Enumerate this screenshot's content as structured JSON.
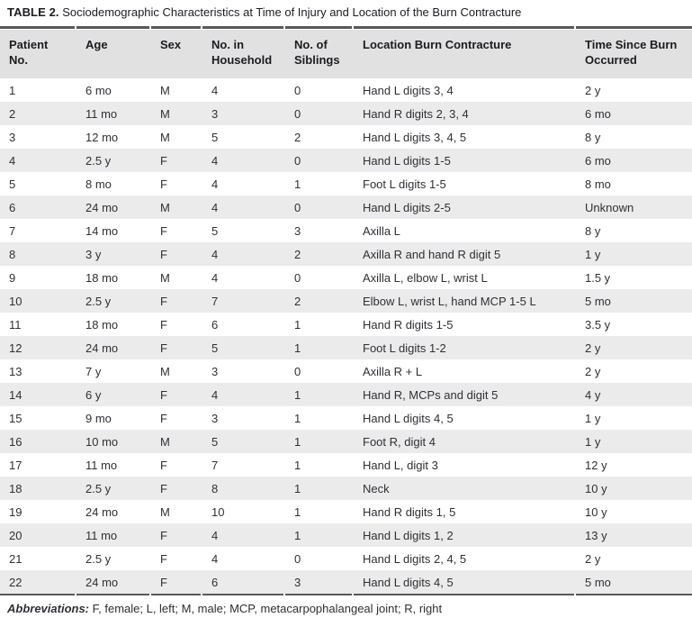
{
  "table": {
    "title_label": "TABLE 2.",
    "title_text": " Sociodemographic Characteristics at Time of Injury and Location of the Burn Contracture",
    "columns": [
      "Patient No.",
      "Age",
      "Sex",
      "No. in Household",
      "No. of Siblings",
      "Location Burn Contracture",
      "Time Since Burn Occurred"
    ],
    "rows": [
      [
        "1",
        "6 mo",
        "M",
        "4",
        "0",
        "Hand L digits 3, 4",
        "2 y"
      ],
      [
        "2",
        "11 mo",
        "M",
        "3",
        "0",
        "Hand R digits 2, 3, 4",
        "6 mo"
      ],
      [
        "3",
        "12 mo",
        "M",
        "5",
        "2",
        "Hand L digits 3, 4, 5",
        "8 y"
      ],
      [
        "4",
        "2.5 y",
        "F",
        "4",
        "0",
        "Hand L digits 1-5",
        "6 mo"
      ],
      [
        "5",
        "8 mo",
        "F",
        "4",
        "1",
        "Foot L digits 1-5",
        "8 mo"
      ],
      [
        "6",
        "24 mo",
        "M",
        "4",
        "0",
        "Hand L digits 2-5",
        "Unknown"
      ],
      [
        "7",
        "14 mo",
        "F",
        "5",
        "3",
        "Axilla L",
        "8 y"
      ],
      [
        "8",
        "3 y",
        "F",
        "4",
        "2",
        "Axilla R and hand R digit 5",
        "1 y"
      ],
      [
        "9",
        "18 mo",
        "M",
        "4",
        "0",
        "Axilla L, elbow L, wrist L",
        "1.5 y"
      ],
      [
        "10",
        "2.5 y",
        "F",
        "7",
        "2",
        "Elbow L, wrist L, hand MCP 1-5 L",
        "5 mo"
      ],
      [
        "11",
        "18 mo",
        "F",
        "6",
        "1",
        "Hand R digits 1-5",
        "3.5 y"
      ],
      [
        "12",
        "24 mo",
        "F",
        "5",
        "1",
        "Foot L digits 1-2",
        "2 y"
      ],
      [
        "13",
        "7 y",
        "M",
        "3",
        "0",
        "Axilla R + L",
        "2 y"
      ],
      [
        "14",
        "6 y",
        "F",
        "4",
        "1",
        "Hand R, MCPs and digit 5",
        "4 y"
      ],
      [
        "15",
        "9 mo",
        "F",
        "3",
        "1",
        "Hand L digits 4, 5",
        "1 y"
      ],
      [
        "16",
        "10 mo",
        "M",
        "5",
        "1",
        "Foot R, digit 4",
        "1 y"
      ],
      [
        "17",
        "11 mo",
        "F",
        "7",
        "1",
        "Hand L, digit 3",
        "12 y"
      ],
      [
        "18",
        "2.5 y",
        "F",
        "8",
        "1",
        "Neck",
        "10 y"
      ],
      [
        "19",
        "24 mo",
        "M",
        "10",
        "1",
        "Hand R digits 1, 5",
        "10 y"
      ],
      [
        "20",
        "11 mo",
        "F",
        "4",
        "1",
        "Hand L digits 1, 2",
        "13 y"
      ],
      [
        "21",
        "2.5 y",
        "F",
        "4",
        "0",
        "Hand L digits 2, 4, 5",
        "2 y"
      ],
      [
        "22",
        "24 mo",
        "F",
        "6",
        "3",
        "Hand L digits 4, 5",
        "5 mo"
      ]
    ],
    "footnote_label": "Abbreviations:",
    "footnote_text": " F, female; L, left; M, male; MCP, metacarpophalangeal joint; R, right",
    "colors": {
      "header_bg": "#e1e1e1",
      "stripe_bg": "#ebebeb",
      "rule": "#59595b",
      "text": "#303036"
    }
  }
}
